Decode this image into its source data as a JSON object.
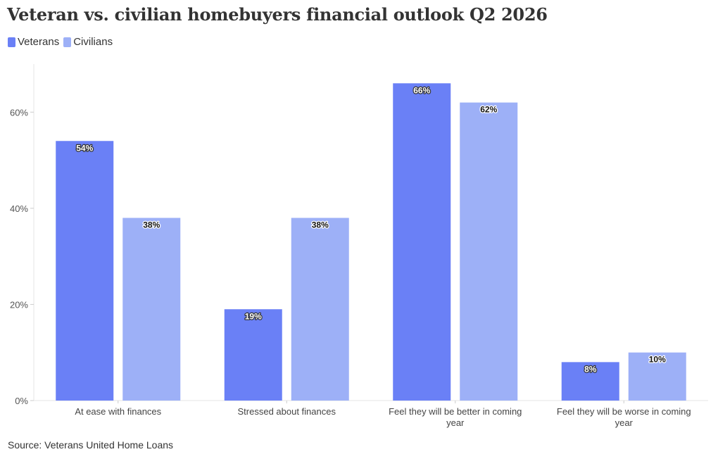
{
  "title": "Veteran vs. civilian homebuyers financial outlook Q2 2026",
  "source": "Source: Veterans United Home Loans",
  "chart_data": {
    "type": "bar",
    "categories": [
      [
        "At ease with finances"
      ],
      [
        "Stressed about finances"
      ],
      [
        "Feel they will be better in coming",
        "year"
      ],
      [
        "Feel they will be worse in coming",
        "year"
      ]
    ],
    "series": [
      {
        "name": "Veterans",
        "color": "#6a80f6",
        "values": [
          54,
          19,
          66,
          8
        ],
        "labels": [
          "54%",
          "19%",
          "66%",
          "8%"
        ]
      },
      {
        "name": "Civilians",
        "color": "#9db0f7",
        "values": [
          38,
          38,
          62,
          10
        ],
        "labels": [
          "38%",
          "38%",
          "62%",
          "10%"
        ]
      }
    ],
    "ylim": [
      0,
      70
    ],
    "yticks": [
      0,
      20,
      40,
      60
    ],
    "ytick_labels": [
      "0%",
      "20%",
      "40%",
      "60%"
    ],
    "xlabel": "",
    "ylabel": "",
    "grid": false,
    "legend": "top-left"
  }
}
